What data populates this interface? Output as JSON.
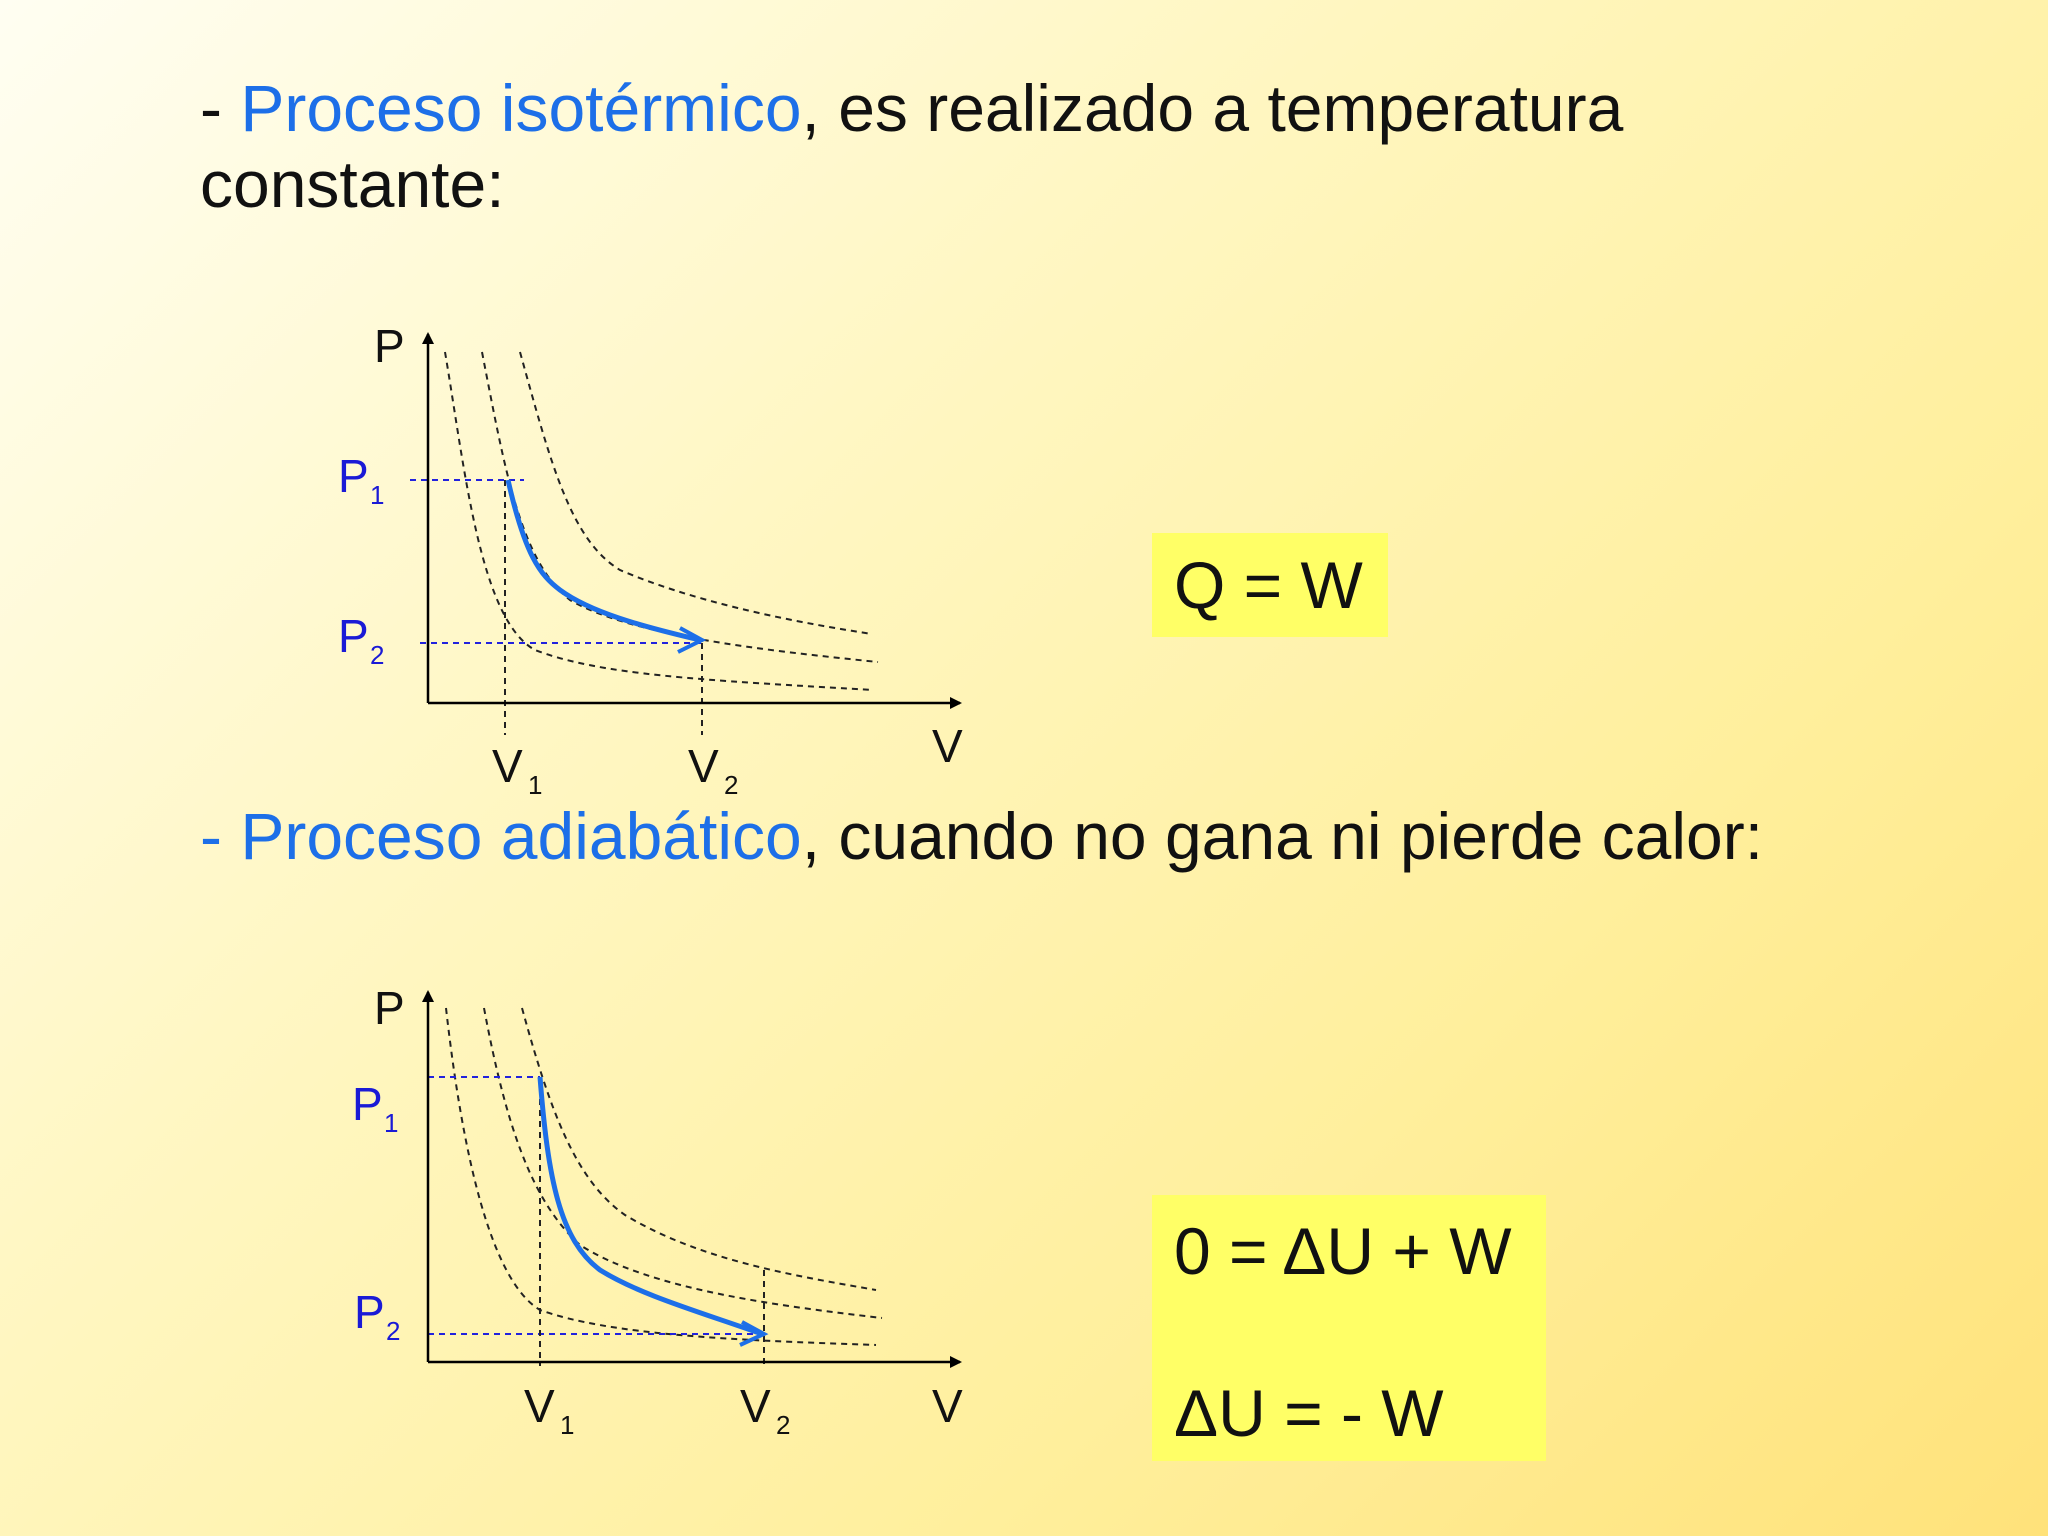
{
  "heading_isothermal": {
    "dash": "- ",
    "highlight": "Proceso isotérmico",
    "rest": ", es realizado a temperatura constante:"
  },
  "heading_adiabatic": {
    "dash": "- ",
    "highlight": "Proceso adiabático",
    "rest": ", cuando no gana ni pierde calor:"
  },
  "diagram_isothermal": {
    "axis_y_label": "P",
    "axis_x_label": "V",
    "p1_label": "P",
    "p1_sub": "1",
    "p2_label": "P",
    "p2_sub": "2",
    "v1_label": "V",
    "v1_sub": "1",
    "v2_label": "V",
    "v2_sub": "2"
  },
  "diagram_adiabatic": {
    "axis_y_label": "P",
    "axis_x_label": "V",
    "p1_label": "P",
    "p1_sub": "1",
    "p2_label": "P",
    "p2_sub": "2",
    "v1_label": "V",
    "v1_sub": "1",
    "v2_label": "V",
    "v2_sub": "2"
  },
  "equation_isothermal": "Q = W",
  "equation_adiabatic": [
    "0 = ΔU + W",
    "ΔU = - W"
  ],
  "colors": {
    "highlight": "#1d6fe8",
    "label_blue": "#1a1ad6",
    "process_curve": "#1d6fe8",
    "equation_bg": "#ffff66"
  }
}
